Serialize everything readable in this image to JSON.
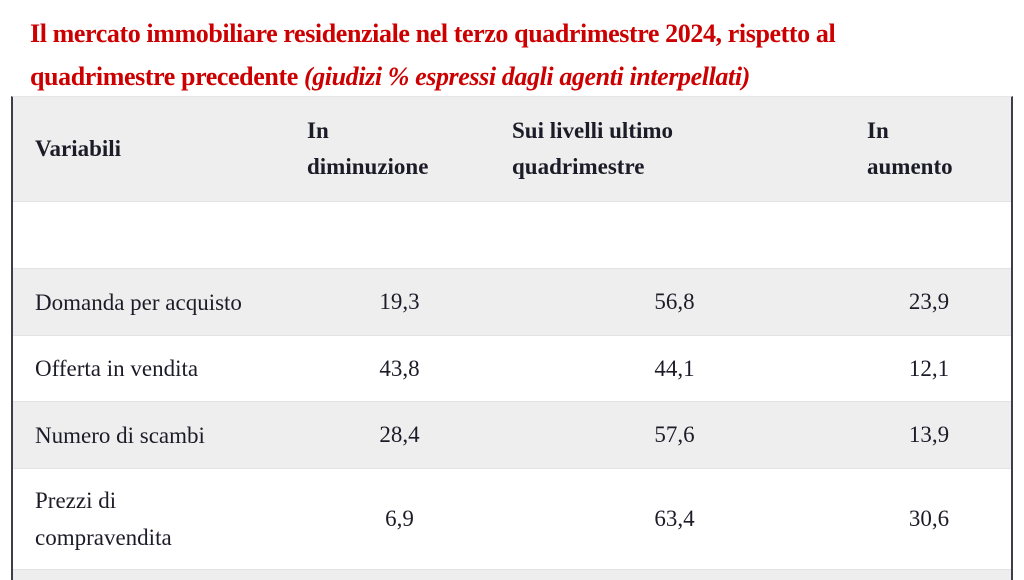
{
  "colors": {
    "accent_red": "#cc0001",
    "row_alt_background": "#efeeee",
    "text": "#1c1c28",
    "side_border": "#3e3e46"
  },
  "title": {
    "line1": "Il mercato immobiliare residenziale nel terzo quadrimestre 2024, rispetto al",
    "line2_normal": "quadrimestre precedente ",
    "line2_italic": "(giudizi % espressi dagli agenti interpellati)"
  },
  "table": {
    "columns": [
      {
        "line1": "Variabili",
        "line2": ""
      },
      {
        "line1": "In",
        "line2": "diminuzione"
      },
      {
        "line1": "Sui livelli ultimo",
        "line2": "quadrimestre"
      },
      {
        "line1": "In",
        "line2": "aumento"
      }
    ],
    "rows": [
      {
        "label": "Domanda per acquisto",
        "values": [
          "19,3",
          "56,8",
          "23,9"
        ]
      },
      {
        "label": "Offerta in vendita",
        "values": [
          "43,8",
          "44,1",
          "12,1"
        ]
      },
      {
        "label": "Numero di scambi",
        "values": [
          "28,4",
          "57,6",
          "13,9"
        ]
      },
      {
        "label": "Prezzi di compravendita",
        "values": [
          "6,9",
          "63,4",
          "30,6"
        ]
      }
    ]
  },
  "chart_data": {
    "type": "table",
    "title": "Il mercato immobiliare residenziale nel terzo quadrimestre 2024, rispetto al quadrimestre precedente (giudizi % espressi dagli agenti interpellati)",
    "unit": "%",
    "columns": [
      "Variabili",
      "In diminuzione",
      "Sui livelli ultimo quadrimestre",
      "In aumento"
    ],
    "rows": [
      {
        "variabile": "Domanda per acquisto",
        "in_diminuzione": 19.3,
        "sui_livelli_ultimo_quadrimestre": 56.8,
        "in_aumento": 23.9
      },
      {
        "variabile": "Offerta in vendita",
        "in_diminuzione": 43.8,
        "sui_livelli_ultimo_quadrimestre": 44.1,
        "in_aumento": 12.1
      },
      {
        "variabile": "Numero di scambi",
        "in_diminuzione": 28.4,
        "sui_livelli_ultimo_quadrimestre": 57.6,
        "in_aumento": 13.9
      },
      {
        "variabile": "Prezzi di compravendita",
        "in_diminuzione": 6.9,
        "sui_livelli_ultimo_quadrimestre": 63.4,
        "in_aumento": 30.6
      }
    ]
  }
}
